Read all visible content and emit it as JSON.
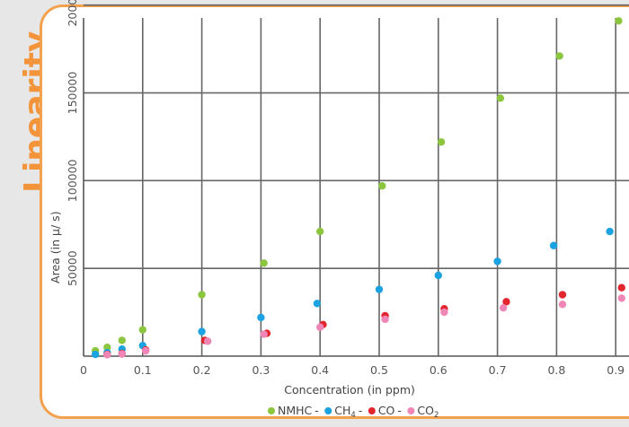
{
  "slide": {
    "title": "Linearity"
  },
  "colors": {
    "accent": "#f3943a",
    "NMHC": "#8cc63f",
    "CH4": "#1aa3e0",
    "CO": "#e3262d",
    "CO2": "#ef86b5"
  },
  "chart_data": {
    "type": "scatter",
    "title": "",
    "xlabel": "Concentration (in ppm)",
    "ylabel": "Area (in µ/ s)",
    "xlim": [
      0,
      1.0
    ],
    "ylim": [
      0,
      225000
    ],
    "xticks": [
      "0",
      "0.1",
      "0.2",
      "0.3",
      "0.4",
      "0.5",
      "0.6",
      "0.7",
      "0.8",
      "0.9"
    ],
    "yticks": [
      "50000",
      "100000",
      "150000",
      "200000"
    ],
    "grid": true,
    "legend_position": "bottom-center",
    "series": [
      {
        "name": "NMHC",
        "points": [
          [
            0.02,
            3000
          ],
          [
            0.04,
            5000
          ],
          [
            0.065,
            9000
          ],
          [
            0.1,
            15000
          ],
          [
            0.2,
            35000
          ],
          [
            0.305,
            53000
          ],
          [
            0.4,
            71000
          ],
          [
            0.505,
            97000
          ],
          [
            0.605,
            122000
          ],
          [
            0.705,
            147000
          ],
          [
            0.805,
            171000
          ],
          [
            0.905,
            191000
          ]
        ]
      },
      {
        "name": "CH4",
        "points": [
          [
            0.02,
            1000
          ],
          [
            0.04,
            2000
          ],
          [
            0.065,
            4000
          ],
          [
            0.1,
            6000
          ],
          [
            0.2,
            14000
          ],
          [
            0.3,
            22000
          ],
          [
            0.395,
            30000
          ],
          [
            0.5,
            38000
          ],
          [
            0.6,
            46000
          ],
          [
            0.7,
            54000
          ],
          [
            0.795,
            63000
          ],
          [
            0.89,
            71000
          ]
        ]
      },
      {
        "name": "CO",
        "points": [
          [
            0.04,
            1000
          ],
          [
            0.065,
            1500
          ],
          [
            0.105,
            3500
          ],
          [
            0.205,
            9000
          ],
          [
            0.31,
            13000
          ],
          [
            0.405,
            18000
          ],
          [
            0.51,
            23000
          ],
          [
            0.61,
            27000
          ],
          [
            0.715,
            31000
          ],
          [
            0.81,
            35000
          ],
          [
            0.91,
            39000
          ]
        ]
      },
      {
        "name": "CO2",
        "points": [
          [
            0.04,
            800
          ],
          [
            0.065,
            1200
          ],
          [
            0.105,
            3000
          ],
          [
            0.21,
            8500
          ],
          [
            0.305,
            12500
          ],
          [
            0.4,
            16500
          ],
          [
            0.51,
            21000
          ],
          [
            0.61,
            25000
          ],
          [
            0.71,
            27500
          ],
          [
            0.81,
            29500
          ],
          [
            0.91,
            33000
          ]
        ]
      }
    ]
  }
}
